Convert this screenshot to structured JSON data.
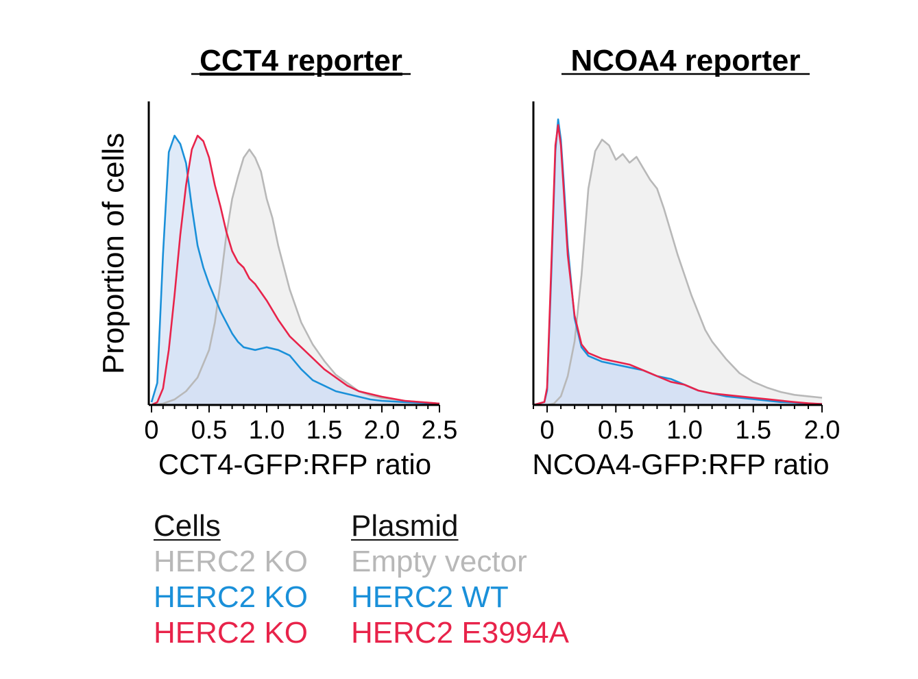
{
  "colors": {
    "empty": "#b8b8b8",
    "empty_fill": "#eeeeee",
    "wt": "#1a90d9",
    "wt_fill": "#c9dcf4",
    "e3994a": "#e8234a",
    "e3994a_fill": "#d3e0f5",
    "axis": "#000000"
  },
  "chart_data": [
    {
      "type": "area",
      "title": "CCT4 reporter",
      "xlabel": "CCT4-GFP:RFP ratio",
      "ylabel": "Proportion of cells",
      "xlim": [
        0,
        2.5
      ],
      "ylim": [
        0,
        1
      ],
      "xticks": [
        0,
        0.5,
        1.0,
        1.5,
        2.0,
        2.5
      ],
      "xtick_labels": [
        "0",
        "0.5",
        "1.0",
        "1.5",
        "2.0",
        "2.5"
      ],
      "series": [
        {
          "name": "Empty vector",
          "color_key": "empty",
          "x": [
            0,
            0.1,
            0.2,
            0.3,
            0.4,
            0.5,
            0.55,
            0.6,
            0.65,
            0.7,
            0.75,
            0.8,
            0.85,
            0.9,
            0.95,
            1.0,
            1.05,
            1.1,
            1.2,
            1.3,
            1.4,
            1.5,
            1.6,
            1.7,
            1.8,
            1.9,
            2.0,
            2.2,
            2.5
          ],
          "y": [
            0,
            0.005,
            0.02,
            0.05,
            0.1,
            0.2,
            0.3,
            0.45,
            0.62,
            0.75,
            0.83,
            0.9,
            0.93,
            0.9,
            0.85,
            0.75,
            0.68,
            0.58,
            0.42,
            0.3,
            0.22,
            0.16,
            0.11,
            0.08,
            0.05,
            0.035,
            0.025,
            0.015,
            0.005
          ]
        },
        {
          "name": "HERC2 WT",
          "color_key": "wt",
          "x": [
            0,
            0.05,
            0.1,
            0.15,
            0.2,
            0.25,
            0.3,
            0.35,
            0.4,
            0.45,
            0.5,
            0.55,
            0.6,
            0.65,
            0.7,
            0.75,
            0.8,
            0.9,
            1.0,
            1.1,
            1.2,
            1.3,
            1.4,
            1.5,
            1.6,
            1.7,
            1.8,
            1.9,
            2.0,
            2.2,
            2.5
          ],
          "y": [
            0.01,
            0.08,
            0.55,
            0.92,
            0.98,
            0.95,
            0.88,
            0.72,
            0.58,
            0.5,
            0.44,
            0.39,
            0.34,
            0.3,
            0.26,
            0.23,
            0.21,
            0.2,
            0.21,
            0.2,
            0.18,
            0.13,
            0.09,
            0.07,
            0.05,
            0.04,
            0.03,
            0.02,
            0.015,
            0.01,
            0.005
          ]
        },
        {
          "name": "HERC2 E3994A",
          "color_key": "e3994a",
          "x": [
            0,
            0.05,
            0.1,
            0.15,
            0.2,
            0.25,
            0.3,
            0.35,
            0.4,
            0.45,
            0.5,
            0.55,
            0.6,
            0.65,
            0.7,
            0.75,
            0.8,
            0.85,
            0.9,
            1.0,
            1.1,
            1.2,
            1.3,
            1.4,
            1.5,
            1.6,
            1.7,
            1.8,
            1.9,
            2.0,
            2.2,
            2.5
          ],
          "y": [
            0,
            0.01,
            0.06,
            0.2,
            0.4,
            0.62,
            0.8,
            0.93,
            0.98,
            0.96,
            0.9,
            0.8,
            0.72,
            0.63,
            0.56,
            0.52,
            0.5,
            0.46,
            0.44,
            0.38,
            0.31,
            0.25,
            0.21,
            0.17,
            0.13,
            0.1,
            0.07,
            0.05,
            0.04,
            0.03,
            0.015,
            0.005
          ]
        }
      ]
    },
    {
      "type": "area",
      "title": "NCOA4 reporter",
      "xlabel": "NCOA4-GFP:RFP ratio",
      "ylabel": "",
      "xlim": [
        -0.1,
        2.0
      ],
      "ylim": [
        0,
        1
      ],
      "xticks": [
        0,
        0.5,
        1.0,
        1.5,
        2.0
      ],
      "xtick_labels": [
        "0",
        "0.5",
        "1.0",
        "1.5",
        "2.0"
      ],
      "series": [
        {
          "name": "Empty vector",
          "color_key": "empty",
          "x": [
            -0.1,
            0.0,
            0.05,
            0.1,
            0.15,
            0.2,
            0.25,
            0.3,
            0.35,
            0.4,
            0.45,
            0.5,
            0.55,
            0.6,
            0.65,
            0.7,
            0.75,
            0.8,
            0.85,
            0.9,
            0.95,
            1.0,
            1.05,
            1.1,
            1.15,
            1.2,
            1.3,
            1.4,
            1.5,
            1.6,
            1.7,
            1.8,
            1.9,
            2.0
          ],
          "y": [
            0,
            0,
            0.005,
            0.03,
            0.1,
            0.22,
            0.45,
            0.75,
            0.88,
            0.92,
            0.9,
            0.85,
            0.87,
            0.84,
            0.86,
            0.82,
            0.78,
            0.75,
            0.68,
            0.6,
            0.52,
            0.45,
            0.38,
            0.32,
            0.26,
            0.22,
            0.16,
            0.11,
            0.08,
            0.06,
            0.045,
            0.035,
            0.03,
            0.025
          ]
        },
        {
          "name": "HERC2 WT",
          "color_key": "wt",
          "x": [
            -0.1,
            -0.02,
            0.0,
            0.03,
            0.06,
            0.08,
            0.1,
            0.12,
            0.15,
            0.2,
            0.25,
            0.3,
            0.4,
            0.5,
            0.6,
            0.7,
            0.8,
            0.9,
            1.0,
            1.1,
            1.2,
            1.3,
            1.4,
            1.5,
            1.6,
            1.7,
            1.8,
            1.9,
            2.0
          ],
          "y": [
            0,
            0.01,
            0.05,
            0.45,
            0.88,
            0.99,
            0.92,
            0.78,
            0.55,
            0.3,
            0.2,
            0.17,
            0.15,
            0.14,
            0.13,
            0.12,
            0.1,
            0.09,
            0.07,
            0.05,
            0.04,
            0.03,
            0.025,
            0.02,
            0.015,
            0.01,
            0.008,
            0.005,
            0.003
          ]
        },
        {
          "name": "HERC2 E3994A",
          "color_key": "e3994a",
          "x": [
            -0.1,
            -0.02,
            0.0,
            0.03,
            0.06,
            0.08,
            0.1,
            0.12,
            0.15,
            0.2,
            0.25,
            0.3,
            0.4,
            0.5,
            0.6,
            0.7,
            0.8,
            0.9,
            1.0,
            1.1,
            1.2,
            1.3,
            1.4,
            1.5,
            1.6,
            1.7,
            1.8,
            1.9,
            2.0
          ],
          "y": [
            0,
            0.01,
            0.06,
            0.48,
            0.9,
            0.97,
            0.9,
            0.75,
            0.52,
            0.31,
            0.21,
            0.18,
            0.16,
            0.15,
            0.14,
            0.12,
            0.1,
            0.08,
            0.07,
            0.05,
            0.04,
            0.035,
            0.03,
            0.025,
            0.02,
            0.015,
            0.01,
            0.006,
            0.003
          ]
        }
      ]
    }
  ],
  "legend": {
    "cells_header": "Cells",
    "plasmid_header": "Plasmid",
    "rows": [
      {
        "cells": "HERC2 KO",
        "plasmid": "Empty vector",
        "color_key": "empty"
      },
      {
        "cells": "HERC2 KO",
        "plasmid": "HERC2 WT",
        "color_key": "wt"
      },
      {
        "cells": "HERC2 KO",
        "plasmid": "HERC2 E3994A",
        "color_key": "e3994a"
      }
    ]
  }
}
